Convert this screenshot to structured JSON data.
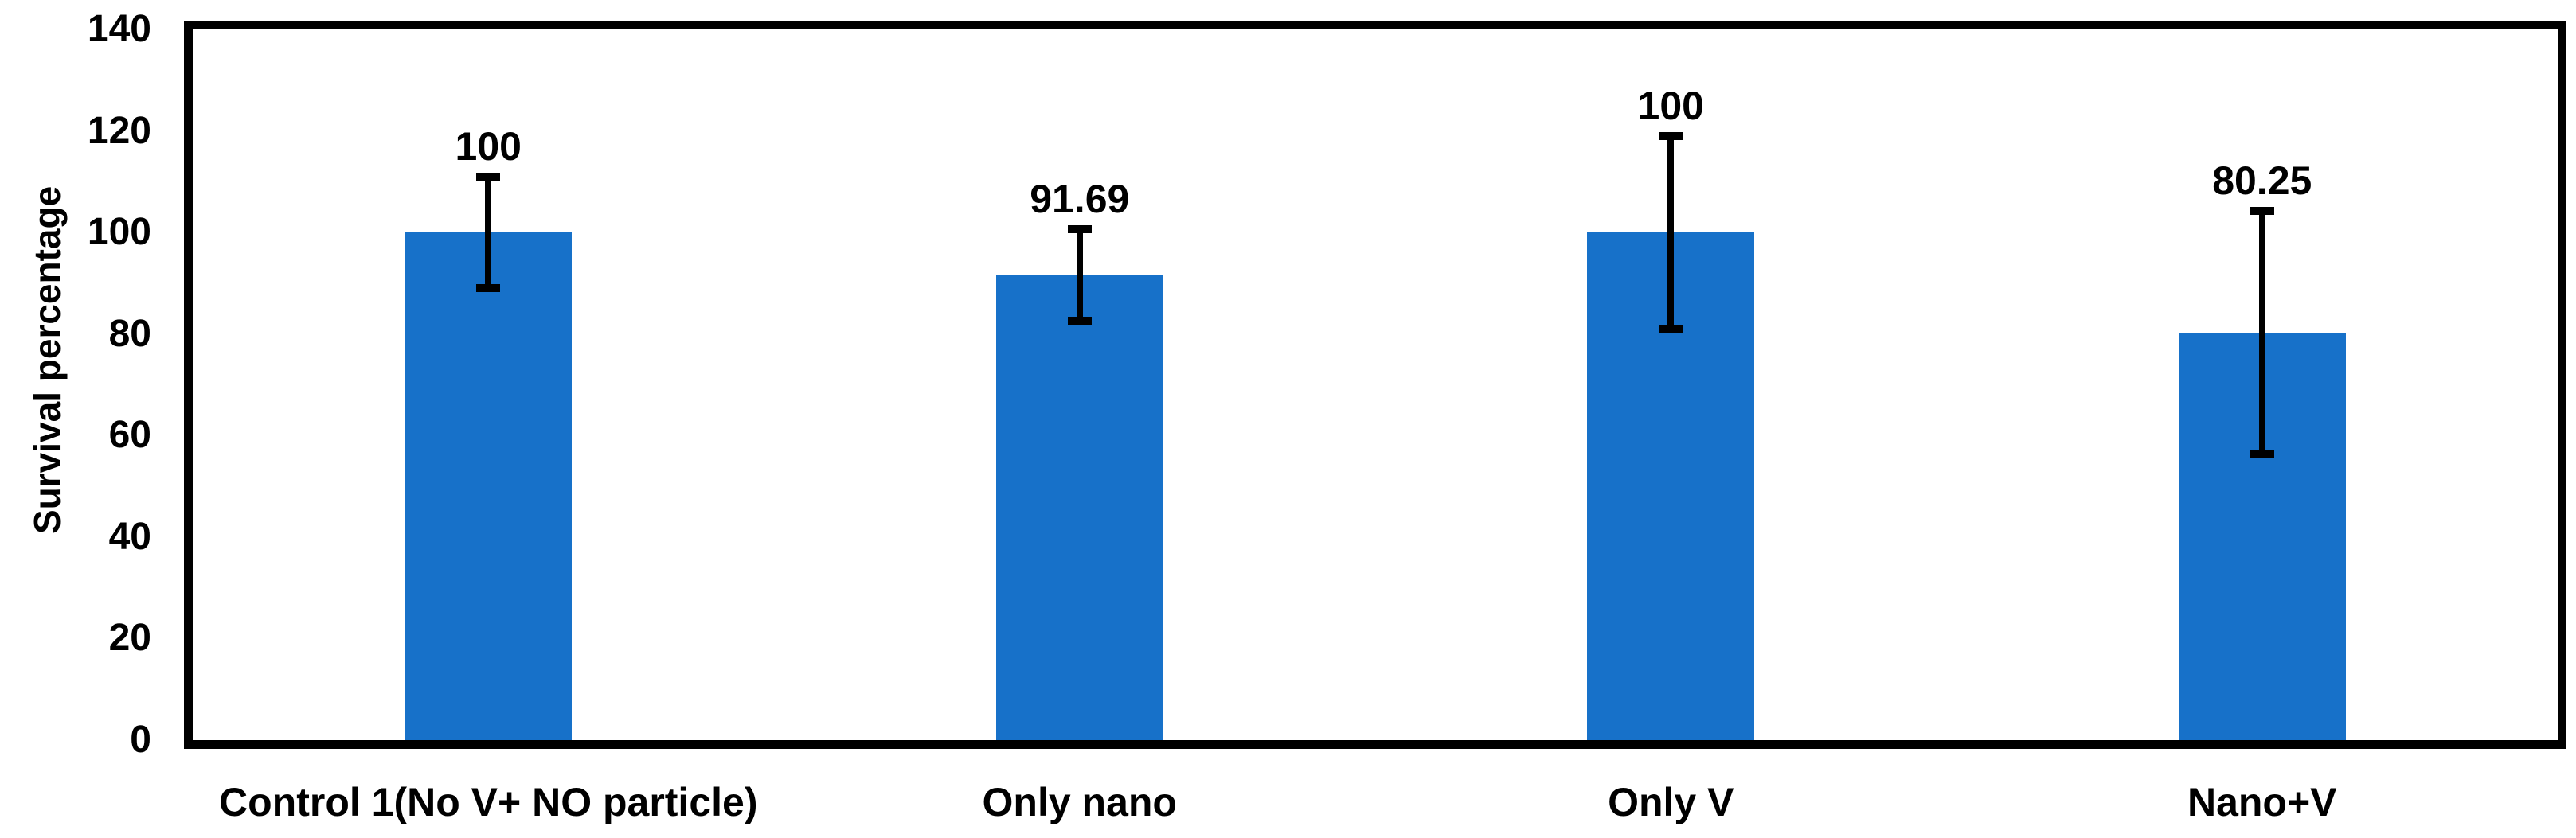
{
  "chart_data": {
    "type": "bar",
    "title": "",
    "xlabel": "",
    "ylabel": "Survival percentage",
    "categories": [
      "Control 1(No V+ NO particle)",
      "Only nano",
      "Only V",
      "Nano+V"
    ],
    "values": [
      100,
      91.69,
      100,
      80.25
    ],
    "value_labels": [
      "100",
      "91.69",
      "100",
      "80.25"
    ],
    "error_bars": [
      11,
      9,
      19,
      24
    ],
    "ylim": [
      0,
      140
    ],
    "yticks": [
      0,
      20,
      40,
      60,
      80,
      100,
      120,
      140
    ],
    "grid": false,
    "legend_position": "none",
    "bar_color": "#1771c9",
    "axis_color": "#000000",
    "error_bar_color": "#000000",
    "label_color": "#000000"
  }
}
